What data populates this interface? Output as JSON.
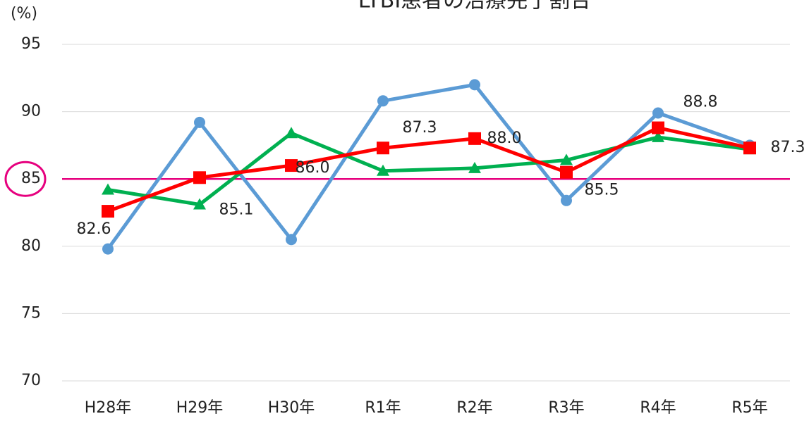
{
  "chart_data": {
    "type": "line",
    "title": "LTBI患者の治療完了割合",
    "y_axis_label": "(%)",
    "categories": [
      "H28年",
      "H29年",
      "H30年",
      "R1年",
      "R2年",
      "R3年",
      "R4年",
      "R5年"
    ],
    "series": [
      {
        "color": "#5b9bd5",
        "marker": "circle",
        "values": [
          79.8,
          89.2,
          80.5,
          90.8,
          92.0,
          83.4,
          89.9,
          87.5
        ]
      },
      {
        "color": "#00b050",
        "marker": "triangle",
        "values": [
          84.2,
          83.1,
          88.4,
          85.6,
          85.8,
          86.4,
          88.1,
          87.2
        ]
      },
      {
        "color": "#ff0000",
        "marker": "square",
        "values": [
          82.6,
          85.1,
          86.0,
          87.3,
          88.0,
          85.5,
          88.8,
          87.3
        ],
        "value_labels": [
          "82.6",
          "85.1",
          "86.0",
          "87.3",
          "88.0",
          "85.5",
          "88.8",
          "87.3"
        ]
      }
    ],
    "reference_line": {
      "value": 85,
      "color": "#e6007e"
    },
    "highlight_tick": 85,
    "ylim": [
      70,
      95
    ],
    "yticks": [
      70,
      75,
      80,
      85,
      90,
      95
    ],
    "grid": true
  }
}
